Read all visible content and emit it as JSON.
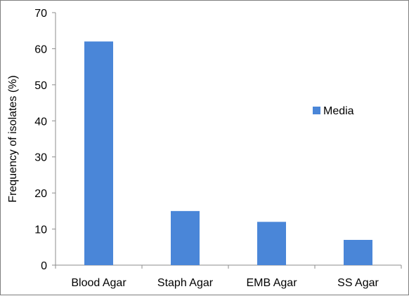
{
  "chart_data": {
    "type": "bar",
    "categories": [
      "Blood Agar",
      "Staph Agar",
      "EMB Agar",
      "SS Agar"
    ],
    "series": [
      {
        "name": "Media",
        "values": [
          62,
          15,
          12,
          7
        ],
        "color": "#4a86d8"
      }
    ],
    "title": "",
    "xlabel": "",
    "ylabel": "Frequency of isolates (%)",
    "ylim": [
      0,
      70
    ],
    "yticks": [
      0,
      10,
      20,
      30,
      40,
      50,
      60,
      70
    ],
    "grid": false,
    "legend_position": "right"
  }
}
